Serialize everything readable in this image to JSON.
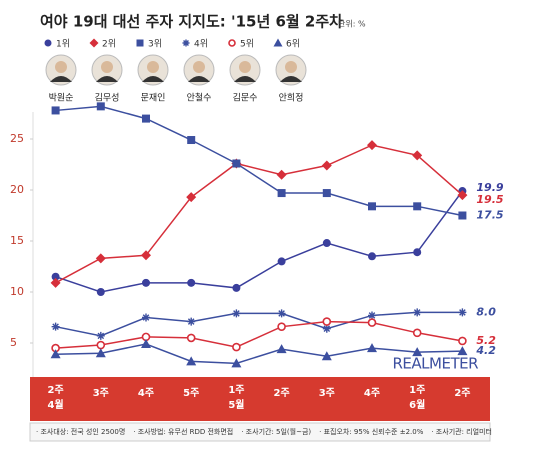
{
  "chart_data": {
    "type": "line",
    "title": "여야 19대 대선 주자 지지도: '15년 6월 2주차",
    "unit": "단위: %",
    "candidates": [
      "박원순",
      "김무성",
      "문재인",
      "안철수",
      "김문수",
      "안희정"
    ],
    "categories": [
      "2주",
      "3주",
      "4주",
      "5주",
      "1주",
      "2주",
      "3주",
      "4주",
      "1주",
      "2주"
    ],
    "month_labels": [
      "4월",
      null,
      null,
      null,
      "5월",
      null,
      null,
      null,
      "6월",
      null
    ],
    "ylim": [
      2,
      29
    ],
    "yticks": [
      5,
      10,
      15,
      20,
      25
    ],
    "grid": false,
    "series": [
      {
        "name": "1위",
        "marker": "circle",
        "color": "#3a3f9c",
        "values": [
          11.5,
          10.0,
          10.9,
          10.9,
          10.4,
          13.0,
          14.8,
          13.5,
          13.9,
          19.9
        ],
        "value_labels": [
          null,
          null,
          null,
          null,
          null,
          null,
          null,
          null,
          null,
          "19.9"
        ]
      },
      {
        "name": "2위",
        "marker": "diamond",
        "color": "#d62f3a",
        "values": [
          10.9,
          13.3,
          13.6,
          19.3,
          22.6,
          21.5,
          22.4,
          24.4,
          23.4,
          19.5
        ],
        "value_labels": [
          null,
          null,
          null,
          null,
          null,
          null,
          null,
          null,
          null,
          "19.5"
        ]
      },
      {
        "name": "3위",
        "marker": "square",
        "color": "#3c4f9f",
        "values": [
          27.8,
          28.2,
          27.0,
          24.9,
          22.6,
          19.7,
          19.7,
          18.4,
          18.4,
          17.5
        ],
        "value_labels": [
          null,
          null,
          null,
          null,
          null,
          null,
          null,
          null,
          null,
          "17.5"
        ]
      },
      {
        "name": "4위",
        "marker": "asterisk",
        "color": "#3c4f9f",
        "values": [
          6.6,
          5.7,
          7.5,
          7.1,
          7.9,
          7.9,
          6.4,
          7.7,
          8.0,
          8.0
        ],
        "value_labels": [
          null,
          null,
          null,
          null,
          null,
          null,
          null,
          null,
          null,
          "8.0"
        ]
      },
      {
        "name": "5위",
        "marker": "open-circle",
        "color": "#d62f3a",
        "values": [
          4.5,
          4.8,
          5.6,
          5.5,
          4.6,
          6.6,
          7.1,
          7.0,
          6.0,
          5.2
        ],
        "value_labels": [
          null,
          null,
          null,
          null,
          null,
          null,
          null,
          null,
          null,
          "5.2"
        ]
      },
      {
        "name": "6위",
        "marker": "triangle",
        "color": "#3c4f9f",
        "values": [
          3.9,
          4.0,
          4.9,
          3.2,
          3.0,
          4.4,
          3.7,
          4.5,
          4.1,
          4.2
        ],
        "value_labels": [
          null,
          null,
          null,
          null,
          null,
          null,
          null,
          null,
          null,
          "4.2"
        ]
      }
    ],
    "logo": "REALMETER",
    "notes": [
      "· 조사대상: 전국 성인 2500명",
      "· 조사방법: 유무선 RDD 전화면접",
      "· 조사기간: 5일(월~금)",
      "· 표집오차: 95% 신뢰수준 ±2.0%",
      "· 조사기관: 리얼미터"
    ]
  }
}
